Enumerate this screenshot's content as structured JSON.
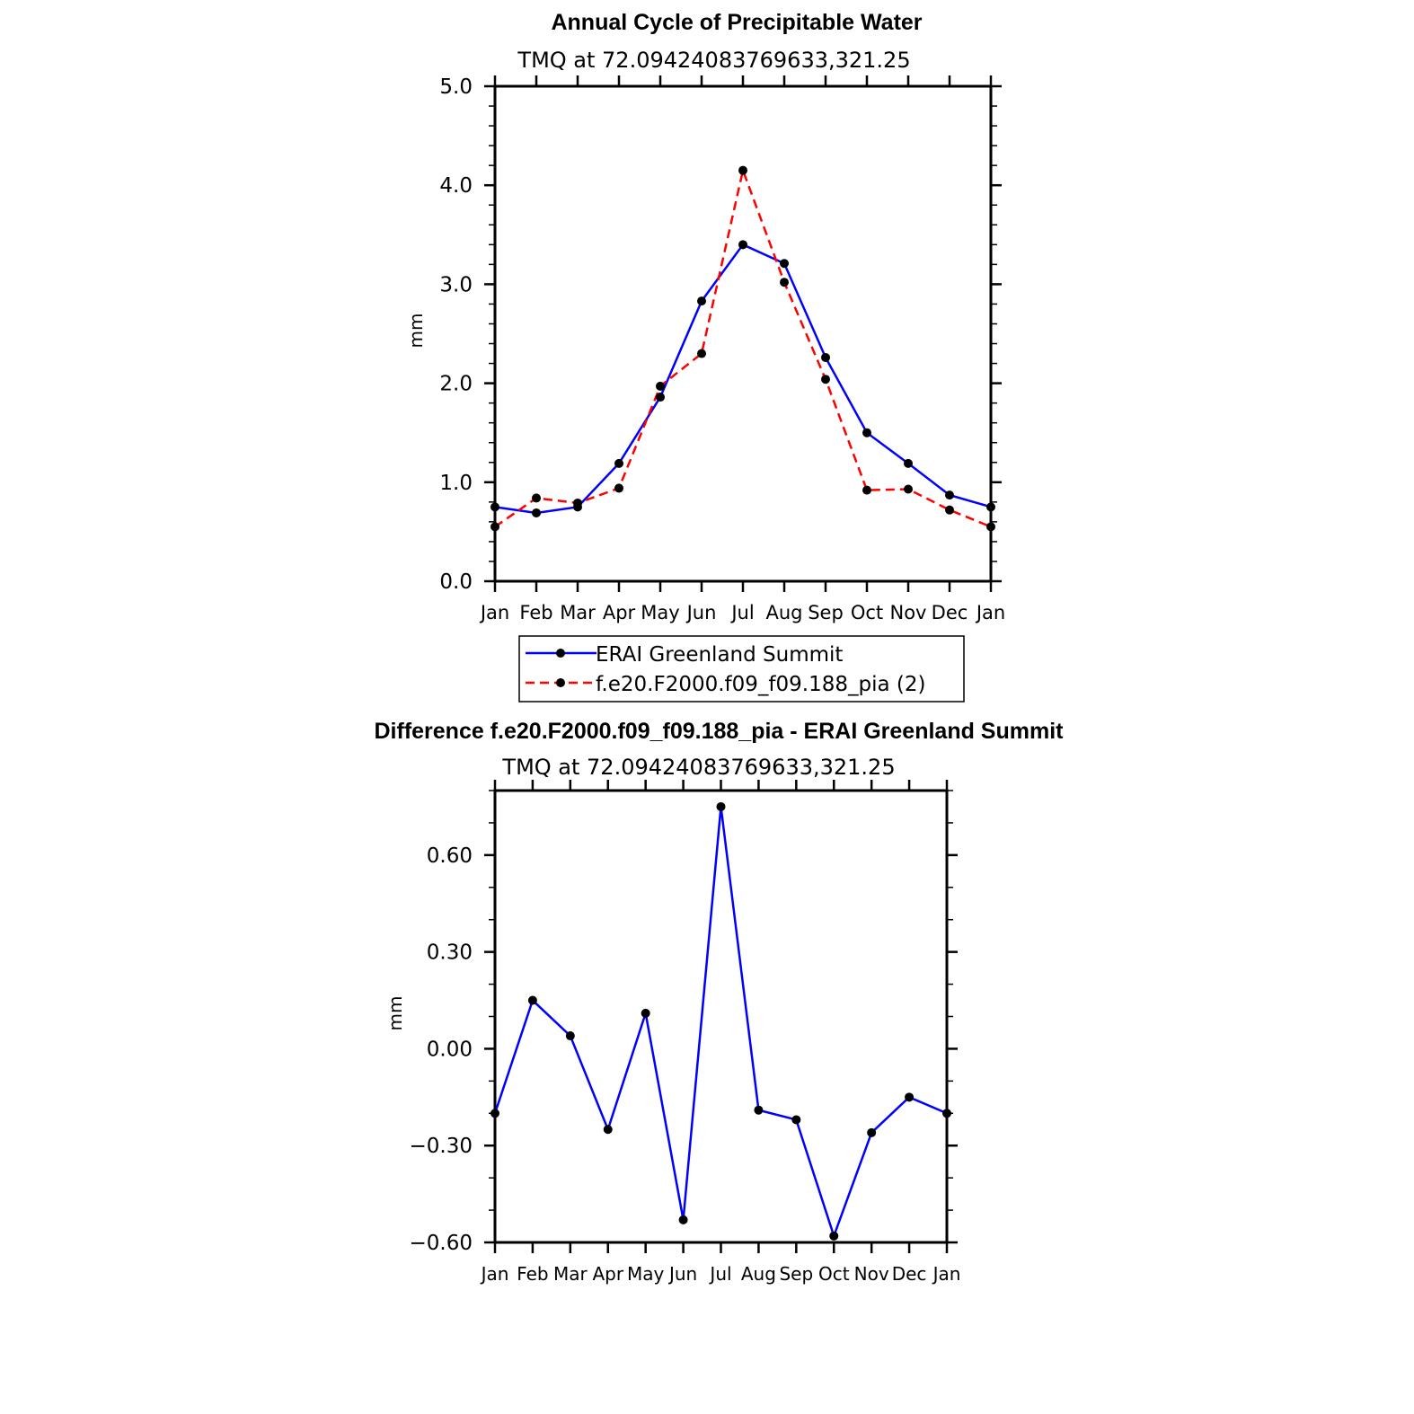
{
  "chart_data": [
    {
      "type": "line",
      "title": "Annual Cycle of Precipitable Water",
      "subtitle": "TMQ at 72.09424083769633,321.25",
      "ylabel": "mm",
      "ylim": [
        0.0,
        5.0
      ],
      "yticks": [
        "0.0",
        "1.0",
        "2.0",
        "3.0",
        "4.0",
        "5.0"
      ],
      "yticks_values": [
        0,
        1,
        2,
        3,
        4,
        5
      ],
      "categories": [
        "Jan",
        "Feb",
        "Mar",
        "Apr",
        "May",
        "Jun",
        "Jul",
        "Aug",
        "Sep",
        "Oct",
        "Nov",
        "Dec",
        "Jan"
      ],
      "series": [
        {
          "name": "ERAI Greenland Summit",
          "color": "#0000ff",
          "style": "solid",
          "values": [
            0.75,
            0.69,
            0.75,
            1.19,
            1.86,
            2.83,
            3.4,
            3.21,
            2.26,
            1.5,
            1.19,
            0.87,
            0.75
          ]
        },
        {
          "name": "f.e20.F2000.f09_f09.188_pia (2)",
          "color": "#ff0000",
          "style": "dashed",
          "values": [
            0.55,
            0.84,
            0.79,
            0.94,
            1.97,
            2.3,
            4.15,
            3.02,
            2.04,
            0.92,
            0.93,
            0.72,
            0.55
          ]
        }
      ],
      "legend": "below"
    },
    {
      "type": "line",
      "title": "Difference f.e20.F2000.f09_f09.188_pia - ERAI Greenland Summit",
      "subtitle": "TMQ at 72.09424083769633,321.25",
      "ylabel": "mm",
      "ylim": [
        -0.6,
        0.8
      ],
      "yticks": [
        "−0.60",
        "−0.30",
        "0.00",
        "0.30",
        "0.60"
      ],
      "yticks_values": [
        -0.6,
        -0.3,
        0.0,
        0.3,
        0.6
      ],
      "categories": [
        "Jan",
        "Feb",
        "Mar",
        "Apr",
        "May",
        "Jun",
        "Jul",
        "Aug",
        "Sep",
        "Oct",
        "Nov",
        "Dec",
        "Jan"
      ],
      "series": [
        {
          "color": "#0000ff",
          "style": "solid",
          "values": [
            -0.2,
            0.15,
            0.04,
            -0.25,
            0.11,
            -0.53,
            0.75,
            -0.19,
            -0.22,
            -0.58,
            -0.26,
            -0.15,
            -0.2
          ]
        }
      ]
    }
  ]
}
